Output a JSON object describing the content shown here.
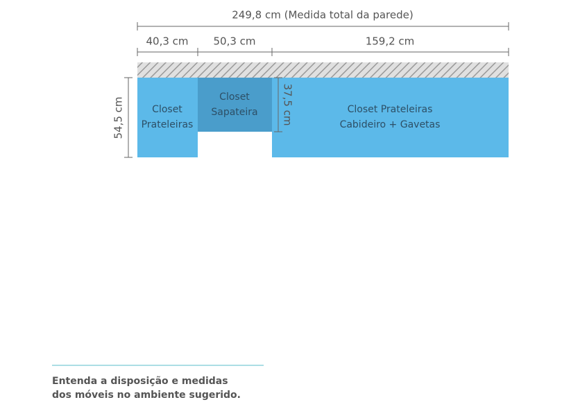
{
  "dimensions": {
    "total": "249,8 cm (Medida total da parede)",
    "segments": [
      "40,3 cm",
      "50,3 cm",
      "159,2 cm"
    ],
    "depth": "54,5 cm",
    "shoe_depth": "37,5 cm"
  },
  "blocks": [
    {
      "lines": [
        "Closet",
        "Prateleiras"
      ]
    },
    {
      "lines": [
        "Closet",
        "Sapateira"
      ]
    },
    {
      "lines": [
        "Closet Prateleiras",
        "Cabideiro + Gavetas"
      ]
    }
  ],
  "caption": {
    "lines": [
      "Entenda a disposição e medidas",
      "dos móveis no ambiente sugerido."
    ]
  }
}
